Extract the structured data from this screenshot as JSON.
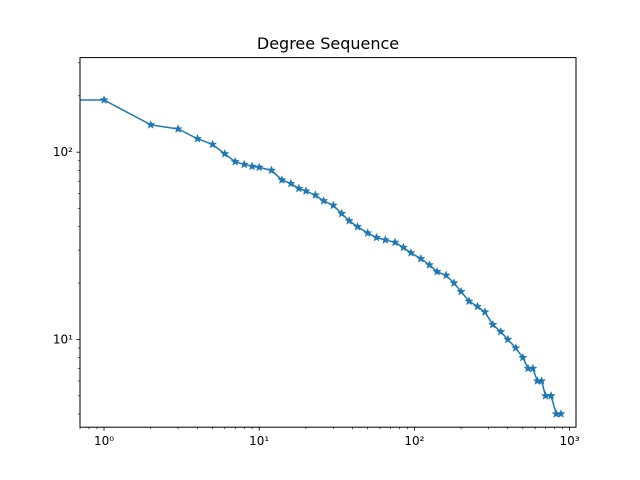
{
  "chart_data": {
    "type": "line",
    "title": "Degree Sequence",
    "xlabel": "",
    "ylabel": "",
    "xscale": "log",
    "yscale": "log",
    "xlim": [
      0.7,
      1100
    ],
    "ylim": [
      3.4,
      320
    ],
    "grid": false,
    "legend": "none",
    "marker": "star",
    "color": "#1f77b4",
    "x_ticks": [
      {
        "value": 1,
        "label": "10⁰"
      },
      {
        "value": 10,
        "label": "10¹"
      },
      {
        "value": 100,
        "label": "10²"
      },
      {
        "value": 1000,
        "label": "10³"
      }
    ],
    "y_ticks": [
      {
        "value": 10,
        "label": "10¹"
      },
      {
        "value": 100,
        "label": "10²"
      }
    ],
    "series": [
      {
        "x": [
          0,
          1,
          2,
          3,
          4,
          5,
          6,
          7,
          8,
          9,
          10,
          12,
          14,
          16,
          18,
          20,
          23,
          26,
          30,
          34,
          38,
          43,
          50,
          57,
          65,
          75,
          85,
          95,
          110,
          125,
          140,
          160,
          180,
          200,
          225,
          255,
          285,
          320,
          360,
          400,
          450,
          500,
          540,
          580,
          620,
          660,
          700,
          760,
          820,
          880
        ],
        "y": [
          190,
          190,
          140,
          133,
          118,
          110,
          98,
          89,
          86,
          84,
          83,
          80,
          71,
          68,
          64,
          62,
          59,
          55,
          52,
          47,
          43,
          40,
          37,
          35,
          34,
          33,
          31,
          29,
          27,
          25,
          23,
          22,
          20,
          18,
          16,
          15,
          14,
          12,
          11,
          10,
          9,
          8,
          7,
          7,
          6,
          6,
          5,
          5,
          4,
          4
        ]
      }
    ]
  }
}
